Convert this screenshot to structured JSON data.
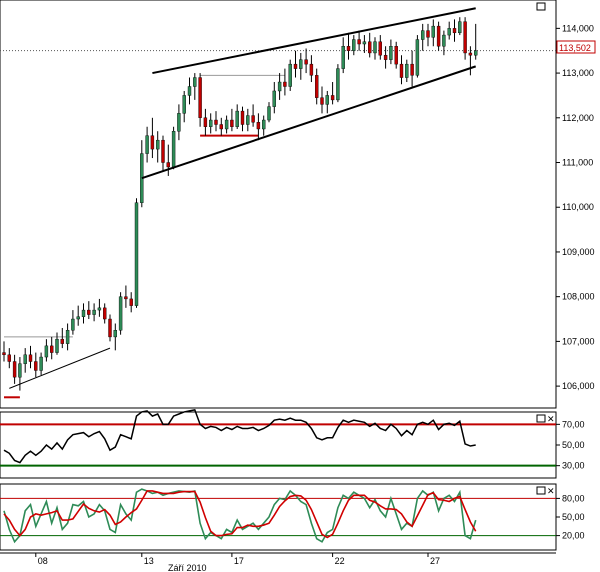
{
  "colors": {
    "background": "#ffffff",
    "candle_up": "#2e8b57",
    "candle_down": "#c00000",
    "wick": "#000000",
    "rsi_line": "#000000",
    "rsi_upper": "#c00000",
    "rsi_lower": "#006400",
    "stoch_k": "#2e8b57",
    "stoch_d": "#d00000",
    "trendline": "#000000",
    "last_price": "#c00000"
  },
  "chart_data": [
    {
      "type": "candlestick",
      "panel": "price",
      "ylim": [
        105.6,
        114.5
      ],
      "y_ticks": [
        "114,000",
        "113,000",
        "112,000",
        "111,000",
        "110,000",
        "109,000",
        "108,000",
        "107,000",
        "106,000"
      ],
      "last_price_label": "113,502",
      "last_price": 113.502,
      "x_ticks": [
        "08",
        "13",
        "17",
        "22",
        "27"
      ],
      "x_tick_index": [
        6,
        26,
        43,
        62,
        80
      ],
      "date_label": "Září 2010",
      "grid": false,
      "candles": [
        [
          106.75,
          107.0,
          106.55,
          106.7
        ],
        [
          106.7,
          106.85,
          106.4,
          106.55
        ],
        [
          106.55,
          106.7,
          106.05,
          106.2
        ],
        [
          106.2,
          106.65,
          105.9,
          106.5
        ],
        [
          106.5,
          106.85,
          106.3,
          106.7
        ],
        [
          106.7,
          106.9,
          106.4,
          106.55
        ],
        [
          106.55,
          106.75,
          106.2,
          106.35
        ],
        [
          106.35,
          106.75,
          106.25,
          106.65
        ],
        [
          106.65,
          107.05,
          106.55,
          106.9
        ],
        [
          106.9,
          107.1,
          106.6,
          106.75
        ],
        [
          106.75,
          107.2,
          106.7,
          107.05
        ],
        [
          107.05,
          107.3,
          106.85,
          106.95
        ],
        [
          106.95,
          107.4,
          106.8,
          107.25
        ],
        [
          107.25,
          107.7,
          107.15,
          107.5
        ],
        [
          107.5,
          107.8,
          107.35,
          107.55
        ],
        [
          107.55,
          107.85,
          107.4,
          107.7
        ],
        [
          107.7,
          107.9,
          107.5,
          107.6
        ],
        [
          107.6,
          107.85,
          107.45,
          107.7
        ],
        [
          107.7,
          107.95,
          107.55,
          107.75
        ],
        [
          107.75,
          107.85,
          107.4,
          107.5
        ],
        [
          107.5,
          107.6,
          107.0,
          107.1
        ],
        [
          107.1,
          107.4,
          106.8,
          107.25
        ],
        [
          107.25,
          108.1,
          107.15,
          108.0
        ],
        [
          108.0,
          108.25,
          107.75,
          107.95
        ],
        [
          107.95,
          108.1,
          107.65,
          107.8
        ],
        [
          107.8,
          110.2,
          107.75,
          110.1
        ],
        [
          110.1,
          111.5,
          110.0,
          111.2
        ],
        [
          111.2,
          111.8,
          111.0,
          111.6
        ],
        [
          111.6,
          112.0,
          111.1,
          111.3
        ],
        [
          111.3,
          111.7,
          111.0,
          111.5
        ],
        [
          111.5,
          111.6,
          110.8,
          111.0
        ],
        [
          111.0,
          111.4,
          110.7,
          110.9
        ],
        [
          110.9,
          111.8,
          110.85,
          111.7
        ],
        [
          111.7,
          112.3,
          111.5,
          112.1
        ],
        [
          112.1,
          112.6,
          111.9,
          112.5
        ],
        [
          112.5,
          112.9,
          112.3,
          112.7
        ],
        [
          112.7,
          113.0,
          112.4,
          112.9
        ],
        [
          112.9,
          113.0,
          111.8,
          112.0
        ],
        [
          112.0,
          112.2,
          111.6,
          111.8
        ],
        [
          111.8,
          112.1,
          111.65,
          111.95
        ],
        [
          111.95,
          112.15,
          111.7,
          111.85
        ],
        [
          111.85,
          112.0,
          111.6,
          111.75
        ],
        [
          111.75,
          112.05,
          111.65,
          111.95
        ],
        [
          111.95,
          112.2,
          111.7,
          111.8
        ],
        [
          111.8,
          112.3,
          111.75,
          112.15
        ],
        [
          112.15,
          112.25,
          111.7,
          111.85
        ],
        [
          111.85,
          112.2,
          111.7,
          112.05
        ],
        [
          112.05,
          112.3,
          111.8,
          111.9
        ],
        [
          111.9,
          112.1,
          111.5,
          111.75
        ],
        [
          111.75,
          112.05,
          111.6,
          111.95
        ],
        [
          111.95,
          112.35,
          111.9,
          112.25
        ],
        [
          112.25,
          112.8,
          112.1,
          112.6
        ],
        [
          112.6,
          113.0,
          112.4,
          112.8
        ],
        [
          112.8,
          113.1,
          112.5,
          112.7
        ],
        [
          112.7,
          113.3,
          112.6,
          113.2
        ],
        [
          113.2,
          113.5,
          112.9,
          113.1
        ],
        [
          113.1,
          113.45,
          112.85,
          113.3
        ],
        [
          113.3,
          113.55,
          113.0,
          113.2
        ],
        [
          113.2,
          113.4,
          112.8,
          112.95
        ],
        [
          112.95,
          113.1,
          112.3,
          112.45
        ],
        [
          112.45,
          112.7,
          112.1,
          112.3
        ],
        [
          112.3,
          112.6,
          112.1,
          112.5
        ],
        [
          112.5,
          112.8,
          112.3,
          112.4
        ],
        [
          112.4,
          113.2,
          112.35,
          113.1
        ],
        [
          113.1,
          113.8,
          113.0,
          113.6
        ],
        [
          113.6,
          113.9,
          113.3,
          113.5
        ],
        [
          113.5,
          113.85,
          113.4,
          113.75
        ],
        [
          113.75,
          113.95,
          113.5,
          113.65
        ],
        [
          113.65,
          113.85,
          113.45,
          113.7
        ],
        [
          113.7,
          113.9,
          113.35,
          113.45
        ],
        [
          113.45,
          113.8,
          113.3,
          113.7
        ],
        [
          113.7,
          113.85,
          113.3,
          113.4
        ],
        [
          113.4,
          113.6,
          113.1,
          113.3
        ],
        [
          113.3,
          113.75,
          113.2,
          113.6
        ],
        [
          113.6,
          113.7,
          113.1,
          113.2
        ],
        [
          113.2,
          113.4,
          112.75,
          112.9
        ],
        [
          112.9,
          113.3,
          112.8,
          113.2
        ],
        [
          113.2,
          113.5,
          112.7,
          112.95
        ],
        [
          112.95,
          113.85,
          112.9,
          113.75
        ],
        [
          113.75,
          114.1,
          113.5,
          113.95
        ],
        [
          113.95,
          114.1,
          113.6,
          113.8
        ],
        [
          113.8,
          114.2,
          113.6,
          114.05
        ],
        [
          114.05,
          114.15,
          113.5,
          113.6
        ],
        [
          113.6,
          113.95,
          113.4,
          113.85
        ],
        [
          113.85,
          114.15,
          113.75,
          114.0
        ],
        [
          114.0,
          114.2,
          113.7,
          113.9
        ],
        [
          113.9,
          114.25,
          113.85,
          114.15
        ],
        [
          114.15,
          114.25,
          113.3,
          113.45
        ],
        [
          113.45,
          113.6,
          112.95,
          113.4
        ],
        [
          113.4,
          114.1,
          113.3,
          113.5
        ]
      ],
      "trendlines": [
        {
          "name": "upper-channel",
          "from": [
            28,
            113.0
          ],
          "to": [
            89,
            114.45
          ]
        },
        {
          "name": "lower-channel",
          "from": [
            26,
            110.65
          ],
          "to": [
            89,
            113.15
          ]
        },
        {
          "name": "early-support",
          "from": [
            1,
            105.95
          ],
          "to": [
            20,
            106.85
          ]
        }
      ],
      "horizontal_levels": [
        {
          "name": "range-top",
          "y": 112.95,
          "from": 37,
          "to": 53,
          "color": "#999999"
        },
        {
          "name": "range-bottom",
          "y": 111.6,
          "from": 37,
          "to": 48,
          "color": "#c00000"
        },
        {
          "name": "early-resistance",
          "y": 107.1,
          "from": 0,
          "to": 13,
          "color": "#999999"
        },
        {
          "name": "old-support",
          "y": 105.75,
          "from": 0,
          "to": 3,
          "color": "#c00000"
        }
      ]
    },
    {
      "type": "line",
      "panel": "rsi",
      "ylim": [
        20,
        80
      ],
      "y_ticks": [
        "70,00",
        "50,00",
        "30,00"
      ],
      "levels": {
        "upper": 70,
        "lower": 30
      },
      "values": [
        45,
        42,
        35,
        33,
        40,
        44,
        40,
        44,
        50,
        46,
        52,
        46,
        55,
        60,
        61,
        62,
        58,
        61,
        63,
        56,
        45,
        48,
        60,
        58,
        56,
        78,
        82,
        83,
        78,
        80,
        70,
        70,
        78,
        80,
        82,
        83,
        84,
        70,
        66,
        68,
        67,
        64,
        67,
        65,
        68,
        66,
        66,
        67,
        64,
        66,
        69,
        74,
        75,
        74,
        76,
        74,
        74,
        72,
        66,
        57,
        55,
        57,
        57,
        67,
        74,
        72,
        74,
        73,
        72,
        68,
        71,
        66,
        64,
        70,
        66,
        59,
        64,
        60,
        70,
        72,
        70,
        74,
        65,
        70,
        71,
        69,
        73,
        51,
        49,
        50
      ]
    },
    {
      "type": "line",
      "panel": "stochastic",
      "ylim": [
        0,
        100
      ],
      "y_ticks": [
        "80,00",
        "50,00",
        "20,00"
      ],
      "levels": {
        "upper": 80,
        "lower": 20
      },
      "series": [
        {
          "role": "k",
          "values": [
            60,
            30,
            10,
            20,
            60,
            70,
            35,
            55,
            75,
            40,
            65,
            30,
            40,
            70,
            68,
            75,
            50,
            55,
            70,
            60,
            30,
            25,
            70,
            55,
            45,
            90,
            95,
            92,
            88,
            90,
            85,
            88,
            90,
            92,
            91,
            90,
            92,
            40,
            15,
            25,
            20,
            15,
            30,
            25,
            45,
            30,
            35,
            40,
            30,
            40,
            50,
            70,
            80,
            78,
            92,
            85,
            75,
            70,
            40,
            15,
            10,
            25,
            30,
            65,
            85,
            80,
            90,
            85,
            80,
            65,
            78,
            60,
            50,
            80,
            55,
            30,
            40,
            35,
            80,
            92,
            85,
            90,
            60,
            80,
            85,
            75,
            90,
            20,
            15,
            45
          ]
        },
        {
          "role": "d",
          "values": [
            55,
            45,
            30,
            20,
            30,
            50,
            55,
            53,
            55,
            57,
            60,
            45,
            45,
            47,
            59,
            71,
            64,
            60,
            58,
            62,
            53,
            38,
            42,
            50,
            57,
            63,
            77,
            92,
            92,
            90,
            88,
            88,
            88,
            90,
            91,
            91,
            91,
            74,
            49,
            27,
            20,
            20,
            22,
            23,
            33,
            33,
            37,
            35,
            35,
            37,
            40,
            53,
            67,
            76,
            83,
            85,
            84,
            77,
            62,
            42,
            22,
            17,
            22,
            40,
            60,
            77,
            85,
            85,
            85,
            77,
            74,
            68,
            63,
            63,
            62,
            55,
            42,
            35,
            52,
            69,
            86,
            89,
            78,
            77,
            75,
            80,
            83,
            62,
            42,
            27
          ]
        }
      ]
    }
  ]
}
